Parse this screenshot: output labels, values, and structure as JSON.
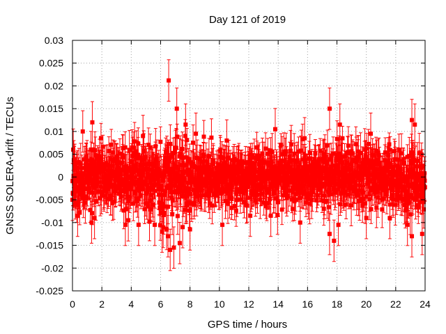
{
  "chart_data": {
    "type": "scatter",
    "title": "Day 121 of 2019",
    "xlabel": "GPS time / hours",
    "ylabel": "GNSS SOLERA-drift / TECUs",
    "xlim": [
      0,
      24
    ],
    "ylim": [
      -0.025,
      0.03
    ],
    "xticks": [
      0,
      2,
      4,
      6,
      8,
      10,
      12,
      14,
      16,
      18,
      20,
      22,
      24
    ],
    "xtick_labels": [
      "0",
      "2",
      "4",
      "6",
      "8",
      "10",
      "12",
      "14",
      "16",
      "18",
      "20",
      "22",
      "24"
    ],
    "yticks": [
      -0.025,
      -0.02,
      -0.015,
      -0.01,
      -0.005,
      0,
      0.005,
      0.01,
      0.015,
      0.02,
      0.025,
      0.03
    ],
    "ytick_labels": [
      "-0.025",
      "-0.02",
      "-0.015",
      "-0.01",
      "-0.005",
      "0",
      "0.005",
      "0.01",
      "0.015",
      "0.02",
      "0.025",
      "0.03"
    ],
    "grid": true,
    "series": [
      {
        "name": "SOLERA drift",
        "color": "#ff0000",
        "marker": "square",
        "error_bars": true,
        "n_points": 1440,
        "noise_sigma_by_hour": [
          0.0038,
          0.0036,
          0.0034,
          0.0036,
          0.0038,
          0.0042,
          0.0048,
          0.0048,
          0.004,
          0.0036,
          0.0033,
          0.0032,
          0.0032,
          0.0034,
          0.0036,
          0.0036,
          0.0034,
          0.0038,
          0.004,
          0.0036,
          0.0034,
          0.0036,
          0.004,
          0.0042
        ],
        "error_bar_halfwidth": 0.0035,
        "outliers": [
          {
            "x": 0.05,
            "y": 0.006
          },
          {
            "x": 0.0,
            "y": -0.005
          },
          {
            "x": 0.35,
            "y": -0.0085
          },
          {
            "x": 0.7,
            "y": 0.01
          },
          {
            "x": 1.35,
            "y": 0.012
          },
          {
            "x": 1.3,
            "y": -0.01
          },
          {
            "x": 1.5,
            "y": -0.009
          },
          {
            "x": 3.6,
            "y": -0.0105
          },
          {
            "x": 3.8,
            "y": -0.0095
          },
          {
            "x": 4.5,
            "y": -0.0105
          },
          {
            "x": 4.8,
            "y": 0.009
          },
          {
            "x": 5.6,
            "y": -0.0105
          },
          {
            "x": 6.1,
            "y": -0.012
          },
          {
            "x": 6.55,
            "y": 0.0212
          },
          {
            "x": 6.5,
            "y": -0.013
          },
          {
            "x": 6.65,
            "y": -0.016
          },
          {
            "x": 6.9,
            "y": -0.0155
          },
          {
            "x": 7.1,
            "y": 0.015
          },
          {
            "x": 7.3,
            "y": -0.0145
          },
          {
            "x": 7.5,
            "y": -0.011
          },
          {
            "x": 7.7,
            "y": 0.0115
          },
          {
            "x": 8.0,
            "y": -0.0115
          },
          {
            "x": 8.4,
            "y": 0.0095
          },
          {
            "x": 10.2,
            "y": -0.0105
          },
          {
            "x": 10.5,
            "y": 0.008
          },
          {
            "x": 12.1,
            "y": -0.0085
          },
          {
            "x": 13.5,
            "y": -0.0085
          },
          {
            "x": 13.8,
            "y": 0.0105
          },
          {
            "x": 15.5,
            "y": -0.01
          },
          {
            "x": 15.8,
            "y": 0.0085
          },
          {
            "x": 17.5,
            "y": 0.015
          },
          {
            "x": 17.5,
            "y": -0.0125
          },
          {
            "x": 17.8,
            "y": -0.014
          },
          {
            "x": 18.1,
            "y": -0.0105
          },
          {
            "x": 18.2,
            "y": 0.0115
          },
          {
            "x": 20.0,
            "y": -0.009
          },
          {
            "x": 20.3,
            "y": 0.0095
          },
          {
            "x": 21.6,
            "y": -0.009
          },
          {
            "x": 22.8,
            "y": -0.0105
          },
          {
            "x": 23.1,
            "y": 0.0125
          },
          {
            "x": 23.1,
            "y": -0.013
          },
          {
            "x": 23.3,
            "y": 0.0115
          },
          {
            "x": 23.8,
            "y": -0.0125
          },
          {
            "x": 23.9,
            "y": -0.0055
          }
        ]
      }
    ]
  }
}
